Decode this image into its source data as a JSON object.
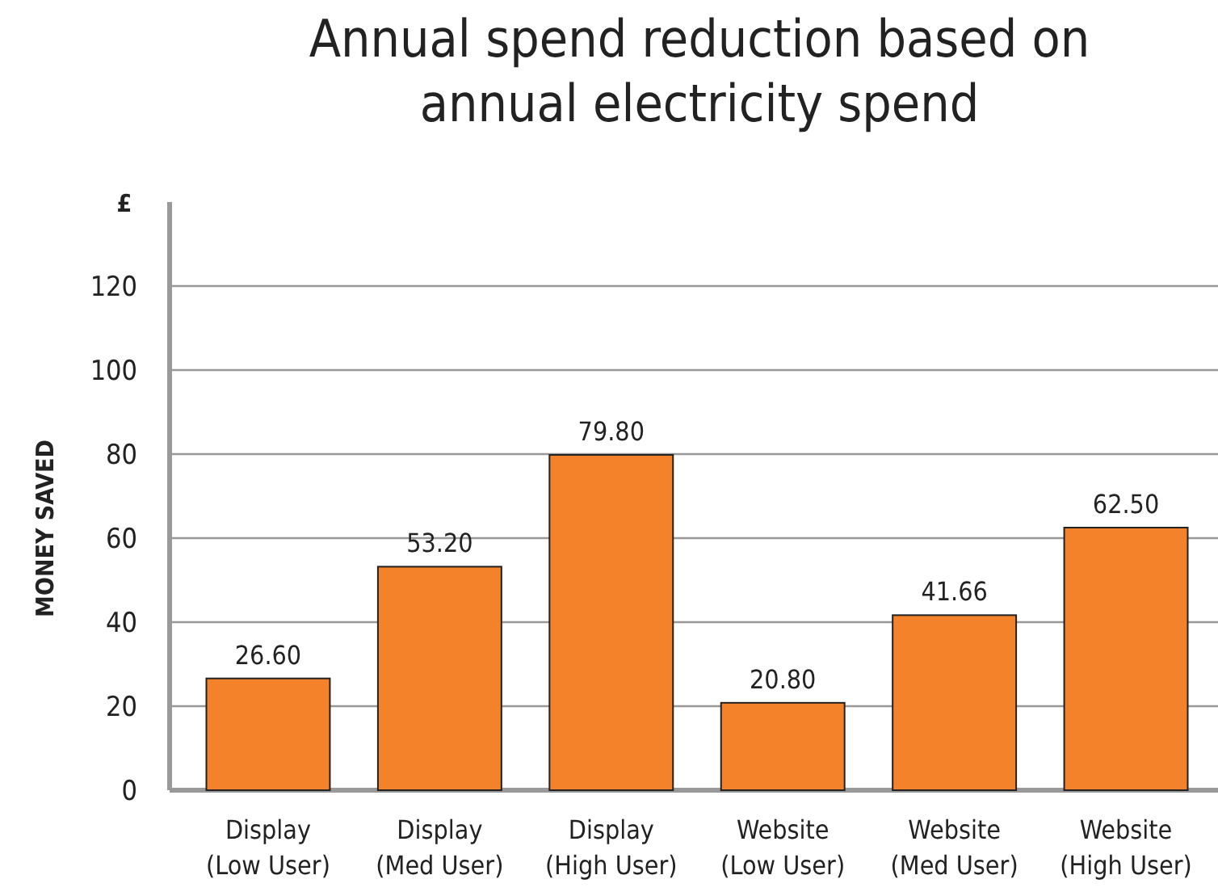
{
  "chart_data": {
    "type": "bar",
    "title": "Annual spend reduction based on annual electricity spend",
    "ylabel": "MONEY SAVED",
    "annotations": [
      "£"
    ],
    "categories": [
      "Display (Low User)",
      "Display (Med User)",
      "Display (High User)",
      "Website (Low User)",
      "Website (Med User)",
      "Website (High User)"
    ],
    "values": [
      26.6,
      53.2,
      79.8,
      20.8,
      41.66,
      62.5
    ],
    "value_labels": [
      "26.60",
      "53.20",
      "79.80",
      "20.80",
      "41.66",
      "62.50"
    ],
    "color": "#f4822a",
    "ylim": [
      0,
      140
    ],
    "yticks": [
      0,
      20,
      40,
      60,
      80,
      100,
      120
    ],
    "grid": "y"
  }
}
